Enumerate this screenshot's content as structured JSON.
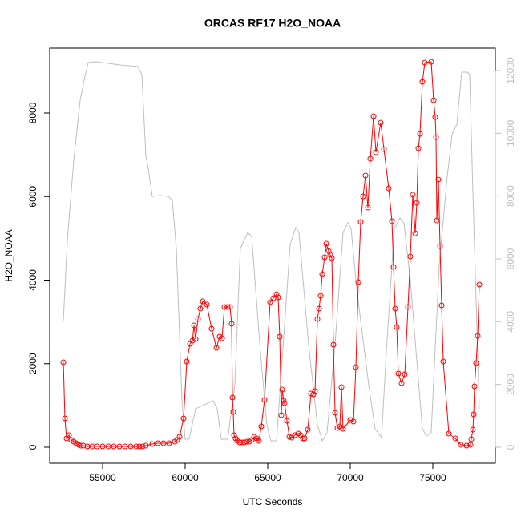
{
  "chart_data": {
    "type": "line",
    "title": "ORCAS RF17 H2O_NOAA",
    "xlabel": "UTC Seconds",
    "ylabel": "H2O_NOAA",
    "xlim": [
      51796,
      78786
    ],
    "ylim": [
      -384,
      9554
    ],
    "y2lim": [
      -511,
      12715
    ],
    "xticks": [
      55000,
      60000,
      65000,
      70000,
      75000
    ],
    "yticks": [
      0,
      2000,
      4000,
      6000,
      8000
    ],
    "y2ticks": [
      0,
      2000,
      4000,
      6000,
      8000,
      10000,
      12000
    ],
    "y2color": "#bebebe",
    "series": [
      {
        "color": "#bebebe",
        "axis": "y2",
        "marker": "none",
        "x": [
          52622,
          52864,
          53252,
          53641,
          53932,
          54126,
          54612,
          56068,
          57136,
          57379,
          57621,
          57767,
          58010,
          58495,
          58981,
          59223,
          59466,
          59806,
          59999,
          60242,
          60631,
          61699,
          61942,
          62184,
          62572,
          63009,
          63343,
          63786,
          64028,
          64562,
          64951,
          65193,
          65533,
          65873,
          66358,
          66698,
          66892,
          67475,
          68009,
          68300,
          68591,
          69077,
          69562,
          69854,
          70048,
          70388,
          71115,
          71504,
          71892,
          72183,
          72669,
          73009,
          73251,
          73640,
          74028,
          74368,
          74611,
          74902,
          75388,
          75874,
          76165,
          76456,
          76747,
          77087,
          77233,
          77427,
          77815
        ],
        "values": [
          4034,
          6587,
          9140,
          11055,
          11821,
          12255,
          12280,
          12178,
          12127,
          11872,
          9268,
          8885,
          7991,
          8017,
          7991,
          7863,
          6331,
          1480,
          255,
          255,
          1225,
          1481,
          1225,
          255,
          255,
          1991,
          6331,
          6842,
          6714,
          3012,
          715,
          204,
          204,
          2757,
          6459,
          6995,
          6842,
          3268,
          715,
          204,
          460,
          3268,
          6842,
          7149,
          6969,
          5055,
          1991,
          587,
          306,
          3012,
          6969,
          7301,
          7149,
          5310,
          2757,
          587,
          357,
          460,
          5820,
          8629,
          9957,
          10289,
          11948,
          11948,
          11872,
          8118,
          1225
        ]
      },
      {
        "color": "#ff0000",
        "marker": "circle",
        "x": [
          52622,
          52718,
          52816,
          52961,
          53107,
          53252,
          53398,
          53544,
          53689,
          53835,
          54078,
          54369,
          54660,
          55000,
          55340,
          55680,
          56019,
          56359,
          56699,
          57039,
          57233,
          57427,
          57621,
          58010,
          58349,
          58689,
          59029,
          59369,
          59514,
          59660,
          59903,
          60097,
          60291,
          60437,
          60534,
          60631,
          60777,
          60922,
          61068,
          61311,
          61602,
          61893,
          62087,
          62233,
          62379,
          62573,
          62718,
          62815,
          62864,
          62912,
          62961,
          63058,
          63155,
          63301,
          63446,
          63592,
          63738,
          63883,
          64029,
          64175,
          64320,
          64466,
          64612,
          64806,
          65145,
          65340,
          65534,
          65631,
          65728,
          65825,
          65874,
          65971,
          66019,
          66165,
          66311,
          66456,
          66650,
          66845,
          66990,
          67136,
          67233,
          67427,
          67621,
          67767,
          67864,
          68010,
          68107,
          68204,
          68301,
          68447,
          68544,
          68689,
          68786,
          68883,
          68980,
          69078,
          69223,
          69369,
          69466,
          69563,
          70000,
          70194,
          70340,
          70485,
          70631,
          70777,
          70922,
          71068,
          71214,
          71408,
          71553,
          71845,
          72039,
          72330,
          72524,
          72621,
          72718,
          72815,
          72912,
          73106,
          73301,
          73495,
          73641,
          73786,
          73932,
          74029,
          74126,
          74223,
          74369,
          74515,
          74903,
          75049,
          75146,
          75194,
          75243,
          75340,
          75437,
          75534,
          75631,
          75971,
          76359,
          76699,
          77039,
          77282,
          77330,
          77427,
          77476,
          77524,
          77621,
          77718,
          77815
        ],
        "values": [
          2033,
          690,
          211,
          288,
          173,
          134,
          96,
          58,
          38,
          38,
          19,
          19,
          19,
          19,
          19,
          19,
          19,
          19,
          19,
          19,
          19,
          19,
          38,
          77,
          96,
          96,
          96,
          134,
          173,
          249,
          690,
          2052,
          2474,
          2551,
          2915,
          2589,
          3069,
          3318,
          3491,
          3414,
          2838,
          2378,
          2647,
          2608,
          3357,
          3357,
          3357,
          2954,
          1189,
          844,
          288,
          211,
          153,
          115,
          115,
          115,
          134,
          134,
          173,
          249,
          211,
          153,
          499,
          1132,
          3471,
          3567,
          3663,
          3587,
          2647,
          767,
          1381,
          1112,
          1055,
          633,
          249,
          230,
          288,
          326,
          288,
          211,
          211,
          422,
          1285,
          1266,
          1343,
          3069,
          3318,
          3625,
          4143,
          4546,
          4872,
          4699,
          4603,
          4527,
          2455,
          825,
          460,
          499,
          1439,
          441,
          652,
          614,
          1918,
          3951,
          5390,
          6003,
          6502,
          5735,
          6905,
          7921,
          7058,
          7768,
          7135,
          6195,
          5409,
          4316,
          3318,
          2877,
          1765,
          1534,
          1745,
          3357,
          4565,
          6042,
          5121,
          5850,
          7154,
          7499,
          8746,
          9206,
          9226,
          8305,
          7902,
          7422,
          5428,
          6406,
          4814,
          3395,
          2052,
          326,
          211,
          58,
          38,
          58,
          192,
          422,
          786,
          1458,
          2014,
          2666,
          3894
        ]
      }
    ]
  }
}
